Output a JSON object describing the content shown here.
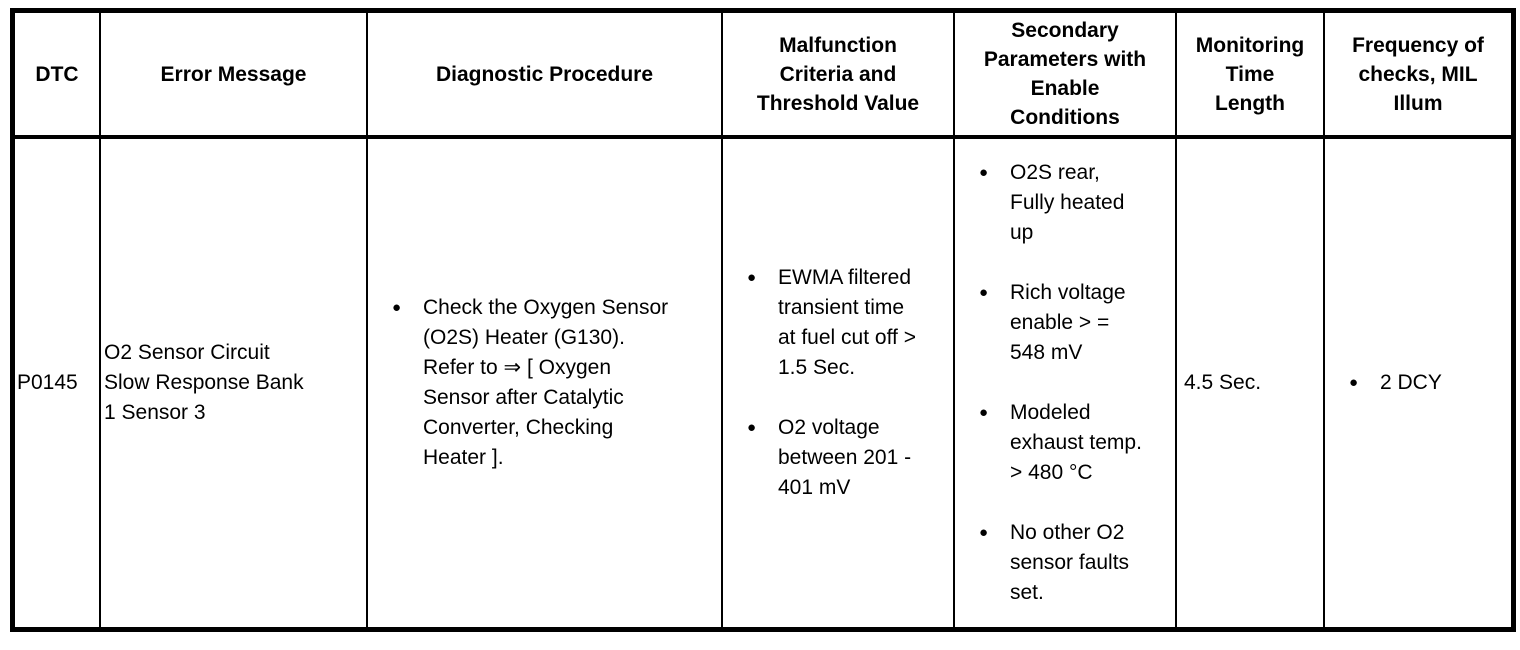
{
  "page": {
    "background_color": "#ffffff",
    "text_color": "#000000",
    "border_color": "#000000"
  },
  "table": {
    "headers": [
      "DTC",
      "Error Message",
      "Diagnostic Procedure",
      "Malfunction\nCriteria and\nThreshold Value",
      "Secondary\nParameters with\nEnable\nConditions",
      "Monitoring\nTime\nLength",
      "Frequency of\nchecks, MIL\nIllum"
    ],
    "row": {
      "dtc": "P0145",
      "error_message": "O2 Sensor Circuit\nSlow Response Bank\n1 Sensor 3",
      "diagnostic_procedure": [
        "Check the Oxygen Sensor\n(O2S) Heater (G130).\nRefer to ⇒ [ Oxygen\nSensor after Catalytic\nConverter, Checking\nHeater ]."
      ],
      "malfunction_criteria": [
        "EWMA filtered\ntransient time\nat fuel cut off >\n1.5 Sec.",
        "O2 voltage\nbetween 201 -\n401 mV"
      ],
      "secondary_parameters": [
        "O2S rear,\nFully heated\nup",
        "Rich voltage\nenable > =\n548 mV",
        "Modeled\nexhaust temp.\n> 480 °C",
        "No other O2\nsensor faults\nset."
      ],
      "monitoring_time": "4.5 Sec.",
      "frequency": [
        "2 DCY"
      ]
    }
  }
}
